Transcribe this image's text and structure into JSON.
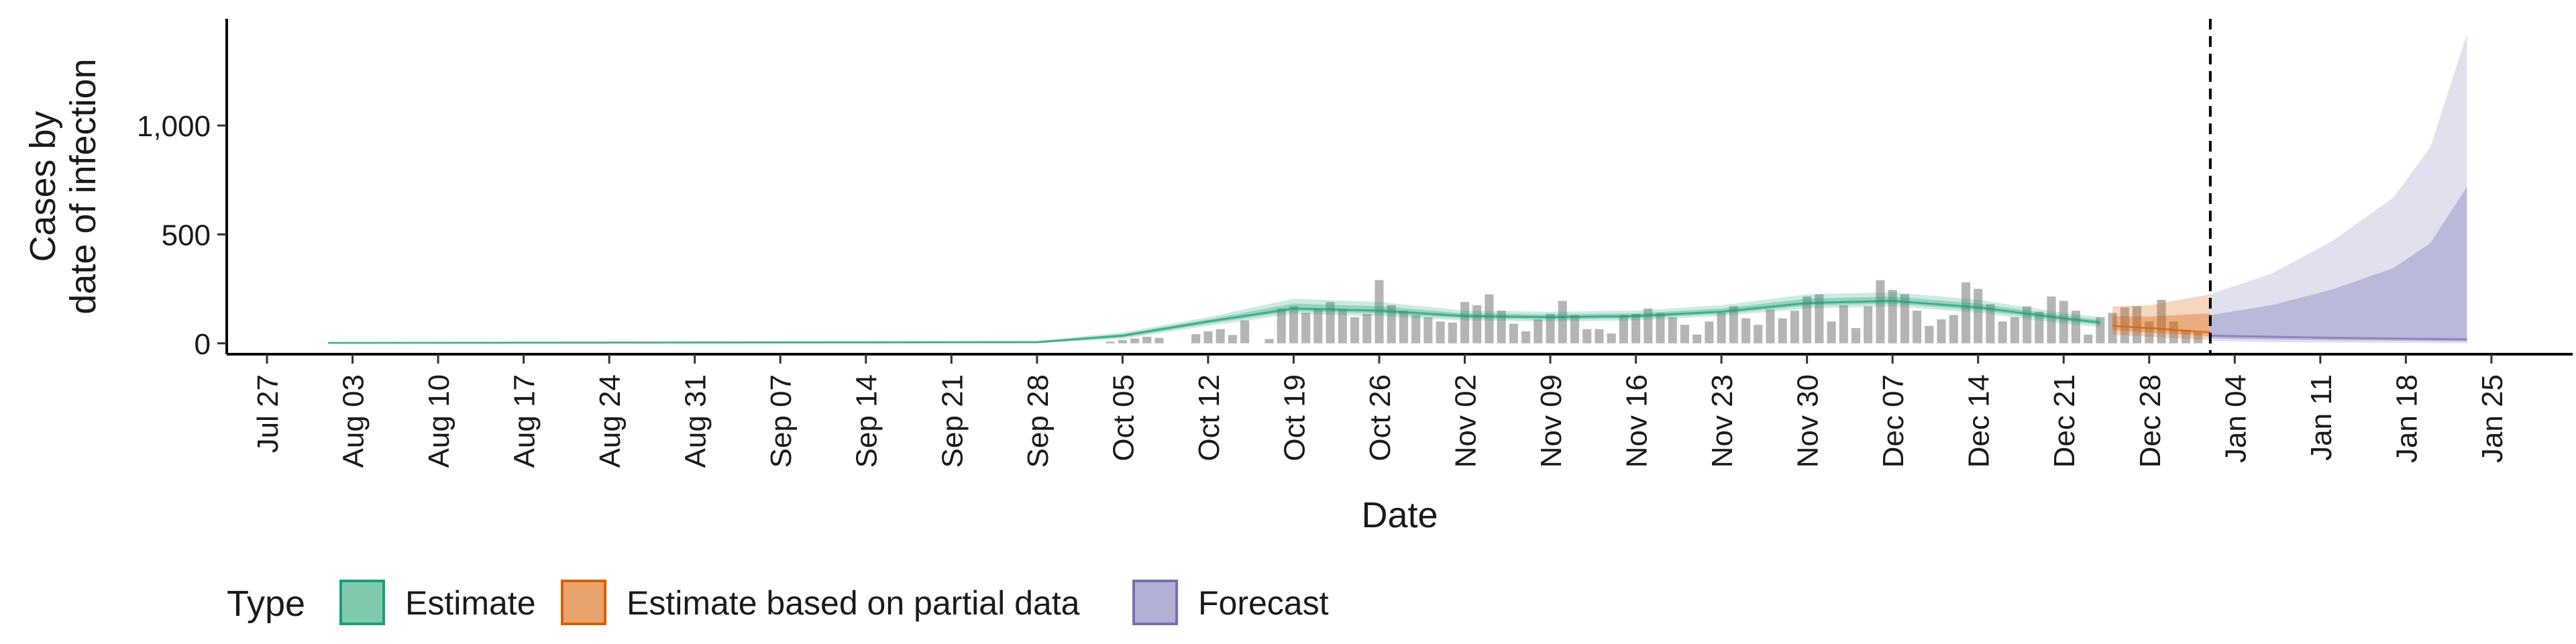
{
  "chart_data": {
    "type": "area",
    "xlabel": "Date",
    "ylabel_lines": [
      "Cases by",
      "date of infection"
    ],
    "x_start": "2020-07-27",
    "x_end": "2021-01-30",
    "x_ticks": [
      "Jul 27",
      "Aug 03",
      "Aug 10",
      "Aug 17",
      "Aug 24",
      "Aug 31",
      "Sep 07",
      "Sep 14",
      "Sep 21",
      "Sep 28",
      "Oct 05",
      "Oct 12",
      "Oct 19",
      "Oct 26",
      "Nov 02",
      "Nov 09",
      "Nov 16",
      "Nov 23",
      "Nov 30",
      "Dec 07",
      "Dec 14",
      "Dec 21",
      "Dec 28",
      "Jan 04",
      "Jan 11",
      "Jan 18",
      "Jan 25"
    ],
    "ylim": [
      -50,
      1490
    ],
    "y_ticks": [
      0,
      500,
      1000
    ],
    "y_tick_labels": [
      "0",
      "500",
      "1,000"
    ],
    "forecast_start": "2021-01-02",
    "legend": {
      "title": "Type",
      "entries": [
        {
          "label": "Estimate",
          "fill": "#7fcaad",
          "stroke": "#1b9e77"
        },
        {
          "label": "Estimate based on partial data",
          "fill": "#e9a46d",
          "stroke": "#d95f02"
        },
        {
          "label": "Forecast",
          "fill": "#b3b0d8",
          "stroke": "#7570b3"
        }
      ]
    },
    "colors": {
      "estimate": "#1b9e77",
      "partial": "#d95f02",
      "forecast": "#7570b3",
      "bars": "#a8a8a8"
    },
    "reported_cases": [
      {
        "date": "2020-10-04",
        "value": 8
      },
      {
        "date": "2020-10-05",
        "value": 15
      },
      {
        "date": "2020-10-06",
        "value": 22
      },
      {
        "date": "2020-10-07",
        "value": 30
      },
      {
        "date": "2020-10-08",
        "value": 25
      },
      {
        "date": "2020-10-11",
        "value": 42
      },
      {
        "date": "2020-10-12",
        "value": 55
      },
      {
        "date": "2020-10-13",
        "value": 65
      },
      {
        "date": "2020-10-14",
        "value": 38
      },
      {
        "date": "2020-10-15",
        "value": 105
      },
      {
        "date": "2020-10-17",
        "value": 20
      },
      {
        "date": "2020-10-18",
        "value": 160
      },
      {
        "date": "2020-10-19",
        "value": 170
      },
      {
        "date": "2020-10-20",
        "value": 140
      },
      {
        "date": "2020-10-21",
        "value": 160
      },
      {
        "date": "2020-10-22",
        "value": 190
      },
      {
        "date": "2020-10-23",
        "value": 155
      },
      {
        "date": "2020-10-24",
        "value": 120
      },
      {
        "date": "2020-10-25",
        "value": 135
      },
      {
        "date": "2020-10-26",
        "value": 290
      },
      {
        "date": "2020-10-27",
        "value": 175
      },
      {
        "date": "2020-10-28",
        "value": 150
      },
      {
        "date": "2020-10-29",
        "value": 130
      },
      {
        "date": "2020-10-30",
        "value": 120
      },
      {
        "date": "2020-10-31",
        "value": 100
      },
      {
        "date": "2020-11-01",
        "value": 95
      },
      {
        "date": "2020-11-02",
        "value": 190
      },
      {
        "date": "2020-11-03",
        "value": 175
      },
      {
        "date": "2020-11-04",
        "value": 225
      },
      {
        "date": "2020-11-05",
        "value": 150
      },
      {
        "date": "2020-11-06",
        "value": 90
      },
      {
        "date": "2020-11-07",
        "value": 55
      },
      {
        "date": "2020-11-08",
        "value": 110
      },
      {
        "date": "2020-11-09",
        "value": 135
      },
      {
        "date": "2020-11-10",
        "value": 195
      },
      {
        "date": "2020-11-11",
        "value": 130
      },
      {
        "date": "2020-11-12",
        "value": 65
      },
      {
        "date": "2020-11-13",
        "value": 65
      },
      {
        "date": "2020-11-14",
        "value": 45
      },
      {
        "date": "2020-11-15",
        "value": 130
      },
      {
        "date": "2020-11-16",
        "value": 135
      },
      {
        "date": "2020-11-17",
        "value": 160
      },
      {
        "date": "2020-11-18",
        "value": 140
      },
      {
        "date": "2020-11-19",
        "value": 120
      },
      {
        "date": "2020-11-20",
        "value": 85
      },
      {
        "date": "2020-11-21",
        "value": 40
      },
      {
        "date": "2020-11-22",
        "value": 100
      },
      {
        "date": "2020-11-23",
        "value": 140
      },
      {
        "date": "2020-11-24",
        "value": 170
      },
      {
        "date": "2020-11-25",
        "value": 115
      },
      {
        "date": "2020-11-26",
        "value": 85
      },
      {
        "date": "2020-11-27",
        "value": 155
      },
      {
        "date": "2020-11-28",
        "value": 115
      },
      {
        "date": "2020-11-29",
        "value": 150
      },
      {
        "date": "2020-11-30",
        "value": 215
      },
      {
        "date": "2020-12-01",
        "value": 225
      },
      {
        "date": "2020-12-02",
        "value": 100
      },
      {
        "date": "2020-12-03",
        "value": 175
      },
      {
        "date": "2020-12-04",
        "value": 70
      },
      {
        "date": "2020-12-05",
        "value": 170
      },
      {
        "date": "2020-12-06",
        "value": 290
      },
      {
        "date": "2020-12-07",
        "value": 245
      },
      {
        "date": "2020-12-08",
        "value": 225
      },
      {
        "date": "2020-12-09",
        "value": 150
      },
      {
        "date": "2020-12-10",
        "value": 80
      },
      {
        "date": "2020-12-11",
        "value": 110
      },
      {
        "date": "2020-12-12",
        "value": 130
      },
      {
        "date": "2020-12-13",
        "value": 280
      },
      {
        "date": "2020-12-14",
        "value": 250
      },
      {
        "date": "2020-12-15",
        "value": 180
      },
      {
        "date": "2020-12-16",
        "value": 100
      },
      {
        "date": "2020-12-17",
        "value": 120
      },
      {
        "date": "2020-12-18",
        "value": 170
      },
      {
        "date": "2020-12-19",
        "value": 145
      },
      {
        "date": "2020-12-20",
        "value": 215
      },
      {
        "date": "2020-12-21",
        "value": 195
      },
      {
        "date": "2020-12-22",
        "value": 150
      },
      {
        "date": "2020-12-23",
        "value": 40
      },
      {
        "date": "2020-12-24",
        "value": 120
      },
      {
        "date": "2020-12-25",
        "value": 140
      },
      {
        "date": "2020-12-26",
        "value": 165
      },
      {
        "date": "2020-12-27",
        "value": 170
      },
      {
        "date": "2020-12-28",
        "value": 100
      },
      {
        "date": "2020-12-29",
        "value": 200
      },
      {
        "date": "2020-12-30",
        "value": 100
      },
      {
        "date": "2020-12-31",
        "value": 60
      },
      {
        "date": "2021-01-01",
        "value": 50
      }
    ],
    "estimate": [
      {
        "date": "2020-08-01",
        "lower": 0,
        "median": 2,
        "upper": 5
      },
      {
        "date": "2020-09-28",
        "lower": 0,
        "median": 5,
        "upper": 12
      },
      {
        "date": "2020-10-05",
        "lower": 20,
        "median": 35,
        "upper": 50
      },
      {
        "date": "2020-10-12",
        "lower": 80,
        "median": 100,
        "upper": 120
      },
      {
        "date": "2020-10-19",
        "lower": 135,
        "median": 160,
        "upper": 205
      },
      {
        "date": "2020-10-26",
        "lower": 125,
        "median": 150,
        "upper": 190
      },
      {
        "date": "2020-11-02",
        "lower": 105,
        "median": 125,
        "upper": 150
      },
      {
        "date": "2020-11-09",
        "lower": 100,
        "median": 120,
        "upper": 145
      },
      {
        "date": "2020-11-16",
        "lower": 105,
        "median": 125,
        "upper": 150
      },
      {
        "date": "2020-11-23",
        "lower": 125,
        "median": 145,
        "upper": 175
      },
      {
        "date": "2020-11-30",
        "lower": 160,
        "median": 185,
        "upper": 225
      },
      {
        "date": "2020-12-07",
        "lower": 170,
        "median": 195,
        "upper": 235
      },
      {
        "date": "2020-12-14",
        "lower": 140,
        "median": 165,
        "upper": 200
      },
      {
        "date": "2020-12-21",
        "lower": 90,
        "median": 115,
        "upper": 140
      },
      {
        "date": "2020-12-24",
        "lower": 75,
        "median": 95,
        "upper": 120
      }
    ],
    "partial_estimate": [
      {
        "date": "2020-12-25",
        "lower": 40,
        "median": 80,
        "upper": 170
      },
      {
        "date": "2020-12-28",
        "lower": 30,
        "median": 70,
        "upper": 175
      },
      {
        "date": "2021-01-02",
        "lower": 15,
        "median": 50,
        "upper": 225
      }
    ],
    "forecast": [
      {
        "date": "2021-01-02",
        "lower": 10,
        "median": 35,
        "upper": 225
      },
      {
        "date": "2021-01-07",
        "lower": 5,
        "median": 30,
        "upper": 320
      },
      {
        "date": "2021-01-12",
        "lower": 3,
        "median": 25,
        "upper": 470
      },
      {
        "date": "2021-01-17",
        "lower": 2,
        "median": 22,
        "upper": 670
      },
      {
        "date": "2021-01-20",
        "lower": 1,
        "median": 20,
        "upper": 900
      },
      {
        "date": "2021-01-23",
        "lower": 0,
        "median": 18,
        "upper": 1420
      }
    ]
  }
}
